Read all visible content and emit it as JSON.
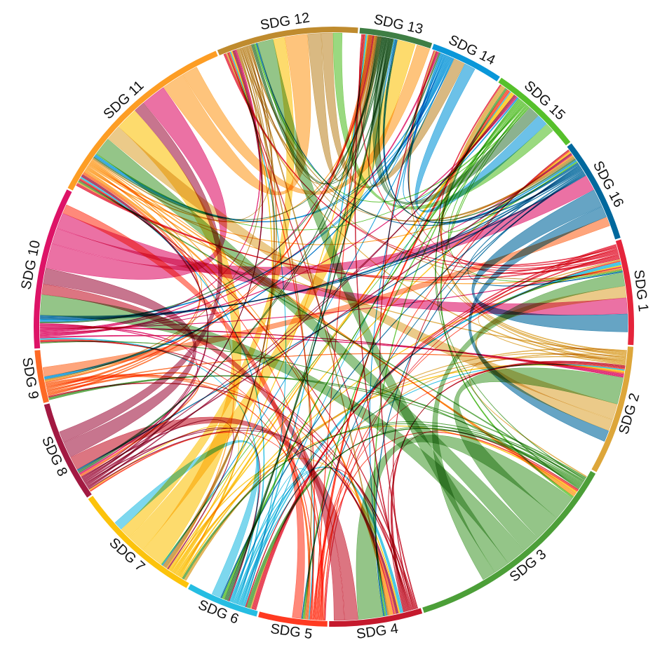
{
  "diagram": {
    "type": "chord",
    "ring_order_clockwise_from_right": [
      "SDG 1",
      "SDG 2",
      "SDG 3",
      "SDG 4",
      "SDG 5",
      "SDG 6",
      "SDG 7",
      "SDG 8",
      "SDG 9",
      "SDG 10",
      "SDG 11",
      "SDG 12",
      "SDG 13",
      "SDG 14",
      "SDG 15",
      "SDG 16"
    ],
    "groups": [
      {
        "id": "SDG 1",
        "label": "SDG 1",
        "color": "#e5243b",
        "weight": 5.2
      },
      {
        "id": "SDG 2",
        "label": "SDG 2",
        "color": "#dda63a",
        "weight": 6.4
      },
      {
        "id": "SDG 3",
        "label": "SDG 3",
        "color": "#4c9f38",
        "weight": 11.0
      },
      {
        "id": "SDG 4",
        "label": "SDG 4",
        "color": "#c5192d",
        "weight": 4.6
      },
      {
        "id": "SDG 5",
        "label": "SDG 5",
        "color": "#ff3a21",
        "weight": 3.4
      },
      {
        "id": "SDG 6",
        "label": "SDG 6",
        "color": "#26bde2",
        "weight": 3.6
      },
      {
        "id": "SDG 7",
        "label": "SDG 7",
        "color": "#fcc30b",
        "weight": 6.5
      },
      {
        "id": "SDG 8",
        "label": "SDG 8",
        "color": "#a21942",
        "weight": 5.0
      },
      {
        "id": "SDG 9",
        "label": "SDG 9",
        "color": "#fd6925",
        "weight": 2.6
      },
      {
        "id": "SDG 10",
        "label": "SDG 10",
        "color": "#dd1367",
        "weight": 8.0
      },
      {
        "id": "SDG 11",
        "label": "SDG 11",
        "color": "#fd9d24",
        "weight": 10.0
      },
      {
        "id": "SDG 12",
        "label": "SDG 12",
        "color": "#bf8b2e",
        "weight": 7.0
      },
      {
        "id": "SDG 13",
        "label": "SDG 13",
        "color": "#3f7e44",
        "weight": 3.6
      },
      {
        "id": "SDG 14",
        "label": "SDG 14",
        "color": "#0a97d9",
        "weight": 3.6
      },
      {
        "id": "SDG 15",
        "label": "SDG 15",
        "color": "#56c02b",
        "weight": 4.6
      },
      {
        "id": "SDG 16",
        "label": "SDG 16",
        "color": "#00689d",
        "weight": 5.2
      }
    ],
    "major_links": [
      {
        "source": "SDG 3",
        "target": "SDG 4",
        "value": 2.2
      },
      {
        "source": "SDG 3",
        "target": "SDG 2",
        "value": 2.4
      },
      {
        "source": "SDG 3",
        "target": "SDG 11",
        "value": 1.6
      },
      {
        "source": "SDG 3",
        "target": "SDG 10",
        "value": 1.8
      },
      {
        "source": "SDG 3",
        "target": "SDG 12",
        "value": 1.4
      },
      {
        "source": "SDG 3",
        "target": "SDG 1",
        "value": 1.2
      },
      {
        "source": "SDG 2",
        "target": "SDG 11",
        "value": 1.4
      },
      {
        "source": "SDG 2",
        "target": "SDG 1",
        "value": 1.0
      },
      {
        "source": "SDG 4",
        "target": "SDG 8",
        "value": 1.2
      },
      {
        "source": "SDG 4",
        "target": "SDG 10",
        "value": 0.9
      },
      {
        "source": "SDG 7",
        "target": "SDG 11",
        "value": 2.0
      },
      {
        "source": "SDG 7",
        "target": "SDG 13",
        "value": 1.6
      },
      {
        "source": "SDG 7",
        "target": "SDG 12",
        "value": 1.0
      },
      {
        "source": "SDG 8",
        "target": "SDG 10",
        "value": 1.4
      },
      {
        "source": "SDG 8",
        "target": "SDG 11",
        "value": 1.0
      },
      {
        "source": "SDG 10",
        "target": "SDG 11",
        "value": 2.2
      },
      {
        "source": "SDG 10",
        "target": "SDG 16",
        "value": 1.4
      },
      {
        "source": "SDG 10",
        "target": "SDG 1",
        "value": 1.4
      },
      {
        "source": "SDG 11",
        "target": "SDG 12",
        "value": 2.0
      },
      {
        "source": "SDG 11",
        "target": "SDG 13",
        "value": 1.4
      },
      {
        "source": "SDG 12",
        "target": "SDG 13",
        "value": 1.2
      },
      {
        "source": "SDG 12",
        "target": "SDG 14",
        "value": 1.0
      },
      {
        "source": "SDG 13",
        "target": "SDG 15",
        "value": 1.0
      },
      {
        "source": "SDG 14",
        "target": "SDG 15",
        "value": 1.0
      },
      {
        "source": "SDG 16",
        "target": "SDG 1",
        "value": 1.6
      },
      {
        "source": "SDG 16",
        "target": "SDG 2",
        "value": 1.0
      },
      {
        "source": "SDG 6",
        "target": "SDG 7",
        "value": 0.8
      },
      {
        "source": "SDG 5",
        "target": "SDG 10",
        "value": 0.8
      },
      {
        "source": "SDG 9",
        "target": "SDG 16",
        "value": 0.8
      },
      {
        "source": "SDG 15",
        "target": "SDG 12",
        "value": 0.8
      }
    ],
    "thin_links_per_group": 11
  }
}
